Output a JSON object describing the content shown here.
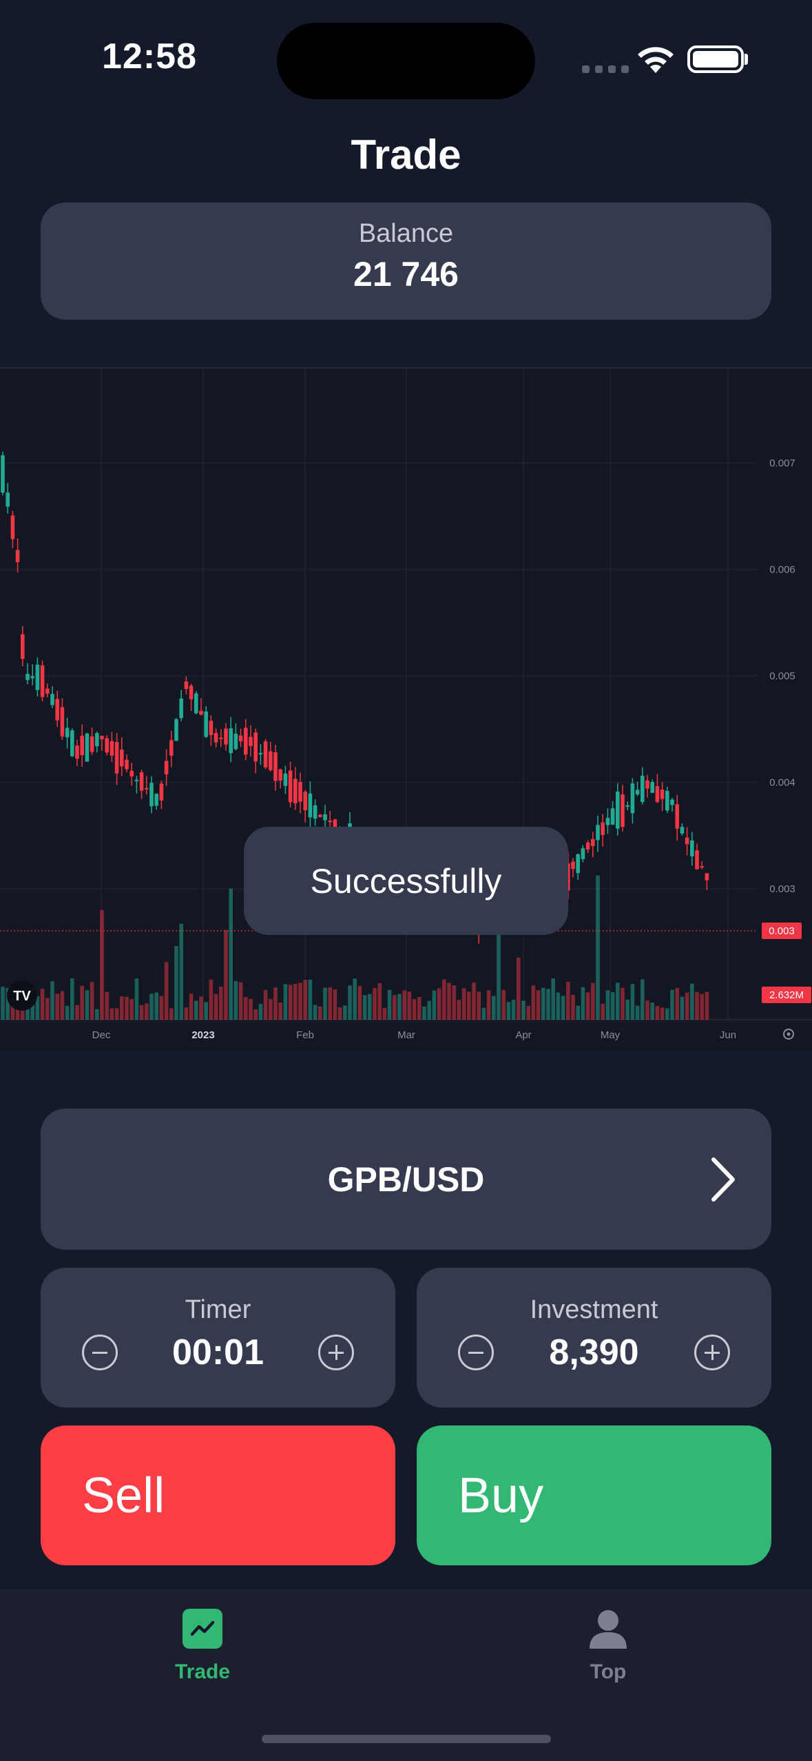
{
  "status_bar": {
    "time": "12:58"
  },
  "header": {
    "title": "Trade"
  },
  "balance": {
    "label": "Balance",
    "value": "21 746"
  },
  "chart": {
    "x_ticks": [
      "Dec",
      "2023",
      "Feb",
      "Mar",
      "Apr",
      "May",
      "Jun"
    ],
    "y_ticks": [
      "0.007",
      "0.006",
      "0.005",
      "0.004",
      "0.003"
    ],
    "last_price_label": "0.003",
    "volume_label": "2.632M",
    "logo_icon": "tradingview-logo-icon",
    "settings_icon": "gear-icon",
    "colors": {
      "up": "#22ab94",
      "down": "#f23645",
      "background": "#131722"
    }
  },
  "toast": {
    "message": "Successfully"
  },
  "pair": {
    "label": "GPB/USD",
    "icon": "chevron-right-icon"
  },
  "timer": {
    "label": "Timer",
    "value": "00:01"
  },
  "investment": {
    "label": "Investment",
    "value": "8,390"
  },
  "actions": {
    "sell_label": "Sell",
    "buy_label": "Buy"
  },
  "tabbar": {
    "trade_label": "Trade",
    "top_label": "Top",
    "active_color": "#32b872"
  }
}
